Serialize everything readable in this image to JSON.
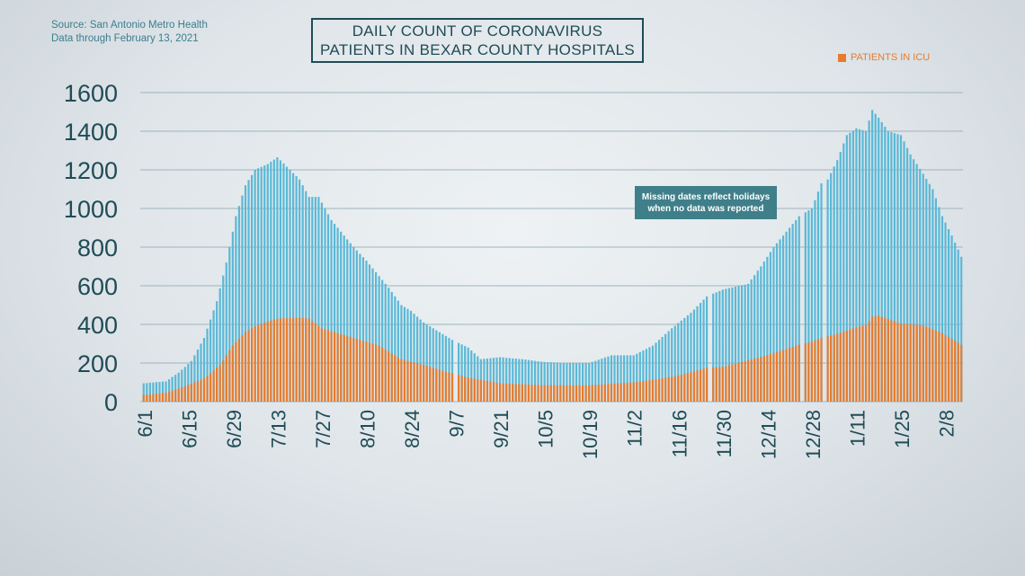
{
  "source": {
    "line1": "Source: San Antonio Metro Health",
    "line2": "Data through February 13, 2021"
  },
  "title": {
    "line1": "DAILY COUNT OF CORONAVIRUS",
    "line2": "PATIENTS IN BEXAR COUNTY HOSPITALS"
  },
  "annotation": {
    "line1": "Missing dates reflect holidays",
    "line2": "when no data was reported"
  },
  "colors": {
    "total": "#5ab8d6",
    "icu": "#e77b2e",
    "axis_text": "#1f4c56",
    "grid": "#9fb4bd"
  },
  "chart_data": {
    "type": "bar",
    "stacked": "overlay",
    "ylim": [
      0,
      1600
    ],
    "yticks": [
      0,
      200,
      400,
      600,
      800,
      1000,
      1200,
      1400,
      1600
    ],
    "x_tick_labels": [
      "6/1",
      "6/15",
      "6/29",
      "7/13",
      "7/27",
      "8/10",
      "8/24",
      "9/7",
      "9/21",
      "10/5",
      "10/19",
      "11/2",
      "11/16",
      "11/30",
      "12/14",
      "12/28",
      "1/11",
      "1/25",
      "2/8"
    ],
    "x_tick_day_offsets": [
      0,
      14,
      28,
      42,
      56,
      70,
      84,
      98,
      112,
      126,
      140,
      154,
      168,
      182,
      196,
      210,
      224,
      238,
      252
    ],
    "grid": true,
    "legend": {
      "position": "top-right",
      "entries": [
        "PATIENTS IN ICU"
      ]
    },
    "missing_dates": [
      "9/7",
      "11/26",
      "12/25",
      "1/1"
    ],
    "total_anchors": [
      [
        "6/1",
        95
      ],
      [
        "6/8",
        105
      ],
      [
        "6/12",
        150
      ],
      [
        "6/16",
        210
      ],
      [
        "6/20",
        330
      ],
      [
        "6/24",
        520
      ],
      [
        "6/27",
        720
      ],
      [
        "6/30",
        960
      ],
      [
        "7/3",
        1120
      ],
      [
        "7/6",
        1200
      ],
      [
        "7/10",
        1230
      ],
      [
        "7/13",
        1265
      ],
      [
        "7/17",
        1200
      ],
      [
        "7/20",
        1150
      ],
      [
        "7/23",
        1060
      ],
      [
        "7/26",
        1060
      ],
      [
        "7/30",
        940
      ],
      [
        "8/2",
        880
      ],
      [
        "8/6",
        800
      ],
      [
        "8/10",
        730
      ],
      [
        "8/14",
        650
      ],
      [
        "8/17",
        590
      ],
      [
        "8/21",
        500
      ],
      [
        "8/24",
        470
      ],
      [
        "8/28",
        410
      ],
      [
        "9/1",
        370
      ],
      [
        "9/6",
        320
      ],
      [
        "9/11",
        280
      ],
      [
        "9/15",
        220
      ],
      [
        "9/21",
        230
      ],
      [
        "9/28",
        220
      ],
      [
        "10/5",
        205
      ],
      [
        "10/12",
        200
      ],
      [
        "10/19",
        200
      ],
      [
        "10/26",
        240
      ],
      [
        "11/2",
        240
      ],
      [
        "11/8",
        290
      ],
      [
        "11/14",
        380
      ],
      [
        "11/20",
        460
      ],
      [
        "11/25",
        545
      ],
      [
        "11/30",
        580
      ],
      [
        "12/4",
        595
      ],
      [
        "12/8",
        610
      ],
      [
        "12/12",
        700
      ],
      [
        "12/16",
        800
      ],
      [
        "12/20",
        880
      ],
      [
        "12/24",
        960
      ],
      [
        "12/28",
        1000
      ],
      [
        "12/31",
        1130
      ],
      [
        "1/2",
        1150
      ],
      [
        "1/5",
        1250
      ],
      [
        "1/8",
        1380
      ],
      [
        "1/11",
        1415
      ],
      [
        "1/14",
        1400
      ],
      [
        "1/16",
        1510
      ],
      [
        "1/18",
        1470
      ],
      [
        "1/21",
        1400
      ],
      [
        "1/25",
        1380
      ],
      [
        "1/28",
        1280
      ],
      [
        "2/1",
        1180
      ],
      [
        "2/4",
        1100
      ],
      [
        "2/7",
        960
      ],
      [
        "2/10",
        860
      ],
      [
        "2/13",
        750
      ]
    ],
    "icu_anchors": [
      [
        "6/1",
        35
      ],
      [
        "6/8",
        45
      ],
      [
        "6/14",
        80
      ],
      [
        "6/20",
        120
      ],
      [
        "6/25",
        190
      ],
      [
        "6/29",
        290
      ],
      [
        "7/3",
        360
      ],
      [
        "7/6",
        390
      ],
      [
        "7/10",
        415
      ],
      [
        "7/13",
        430
      ],
      [
        "7/20",
        435
      ],
      [
        "7/23",
        430
      ],
      [
        "7/27",
        380
      ],
      [
        "8/3",
        345
      ],
      [
        "8/10",
        310
      ],
      [
        "8/14",
        290
      ],
      [
        "8/21",
        220
      ],
      [
        "8/28",
        190
      ],
      [
        "9/4",
        155
      ],
      [
        "9/11",
        125
      ],
      [
        "9/21",
        95
      ],
      [
        "10/5",
        85
      ],
      [
        "10/19",
        85
      ],
      [
        "11/2",
        100
      ],
      [
        "11/9",
        115
      ],
      [
        "11/16",
        135
      ],
      [
        "11/25",
        175
      ],
      [
        "11/30",
        180
      ],
      [
        "12/7",
        210
      ],
      [
        "12/14",
        240
      ],
      [
        "12/24",
        295
      ],
      [
        "12/28",
        310
      ],
      [
        "12/31",
        330
      ],
      [
        "1/5",
        350
      ],
      [
        "1/11",
        385
      ],
      [
        "1/14",
        395
      ],
      [
        "1/16",
        440
      ],
      [
        "1/18",
        445
      ],
      [
        "1/25",
        405
      ],
      [
        "2/1",
        395
      ],
      [
        "2/7",
        355
      ],
      [
        "2/13",
        295
      ]
    ]
  }
}
